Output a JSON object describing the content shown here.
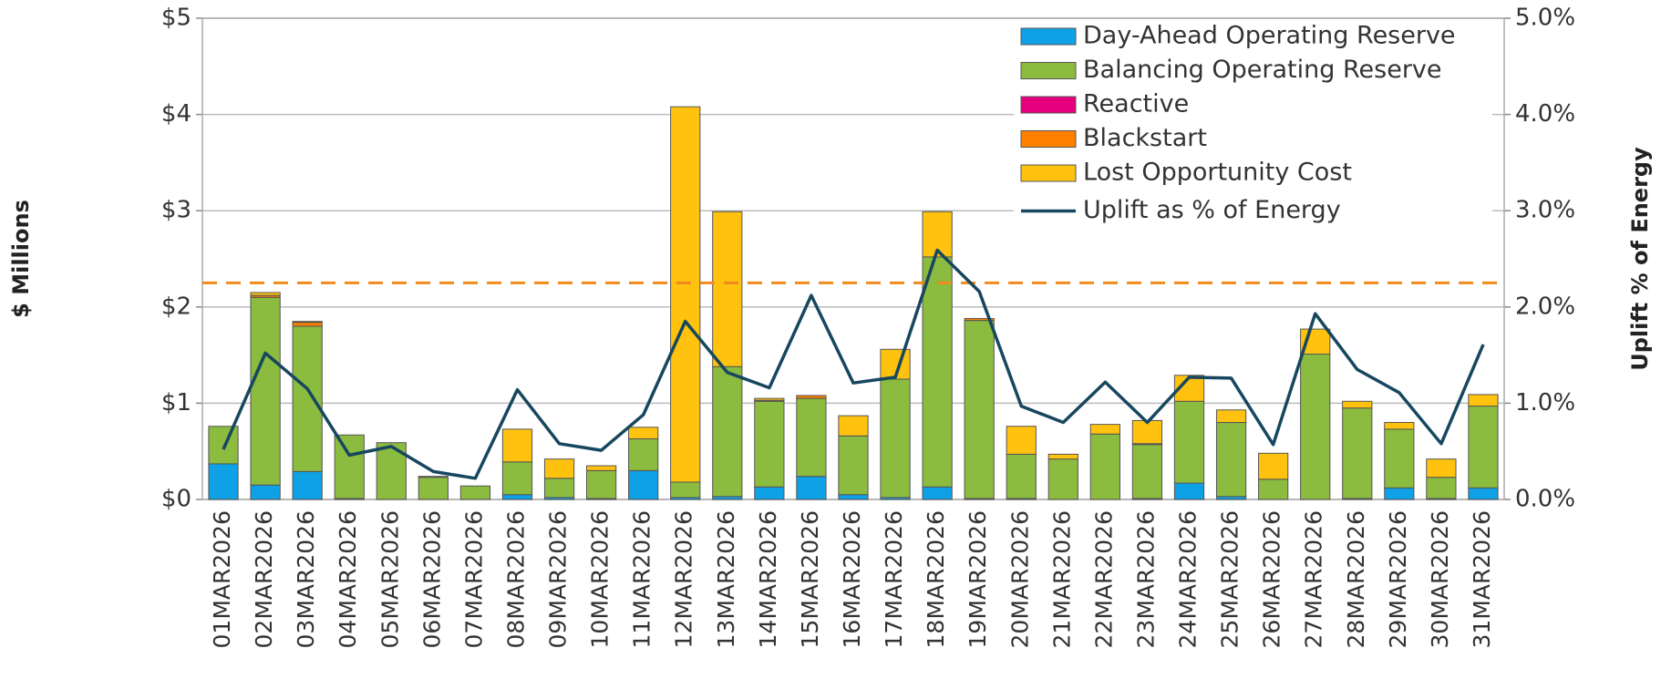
{
  "chart_data": {
    "type": "bar",
    "stacked": true,
    "ylabel": "$ Millions",
    "y2label": "Uplift % of Energy",
    "categories": [
      "01MAR2026",
      "02MAR2026",
      "03MAR2026",
      "04MAR2026",
      "05MAR2026",
      "06MAR2026",
      "07MAR2026",
      "08MAR2026",
      "09MAR2026",
      "10MAR2026",
      "11MAR2026",
      "12MAR2026",
      "13MAR2026",
      "14MAR2026",
      "15MAR2026",
      "16MAR2026",
      "17MAR2026",
      "18MAR2026",
      "19MAR2026",
      "20MAR2026",
      "21MAR2026",
      "22MAR2026",
      "23MAR2026",
      "24MAR2026",
      "25MAR2026",
      "26MAR2026",
      "27MAR2026",
      "28MAR2026",
      "29MAR2026",
      "30MAR2026",
      "31MAR2026"
    ],
    "series": [
      {
        "name": "Day-Ahead Operating Reserve",
        "color": "#0ea1e6",
        "type": "bar",
        "values": [
          0.37,
          0.15,
          0.29,
          0.01,
          0,
          0,
          0,
          0.05,
          0.02,
          0.01,
          0.3,
          0.02,
          0.03,
          0.13,
          0.24,
          0.05,
          0.02,
          0.13,
          0.01,
          0.01,
          0,
          0,
          0.01,
          0.17,
          0.03,
          0,
          0,
          0.01,
          0.12,
          0.01,
          0.12
        ]
      },
      {
        "name": "Balancing Operating Reserve",
        "color": "#8bbb3f",
        "type": "bar",
        "values": [
          0.39,
          1.95,
          1.51,
          0.66,
          0.59,
          0.23,
          0.14,
          0.34,
          0.2,
          0.29,
          0.33,
          0.16,
          1.35,
          0.89,
          0.81,
          0.61,
          1.23,
          2.39,
          1.85,
          0.46,
          0.42,
          0.68,
          0.56,
          0.85,
          0.77,
          0.21,
          1.51,
          0.94,
          0.61,
          0.22,
          0.85
        ]
      },
      {
        "name": "Reactive",
        "color": "#e6007e",
        "type": "bar",
        "values": [
          0,
          0,
          0,
          0,
          0,
          0,
          0,
          0,
          0,
          0,
          0,
          0,
          0,
          0,
          0,
          0,
          0,
          0,
          0,
          0,
          0,
          0,
          0,
          0,
          0,
          0,
          0,
          0,
          0,
          0,
          0
        ]
      },
      {
        "name": "Blackstart",
        "color": "#ff8000",
        "type": "bar",
        "values": [
          0,
          0.02,
          0.04,
          0,
          0,
          0.01,
          0,
          0,
          0,
          0,
          0,
          0,
          0,
          0.01,
          0.03,
          0,
          0,
          0,
          0.02,
          0,
          0,
          0,
          0.01,
          0,
          0,
          0,
          0,
          0,
          0,
          0,
          0
        ]
      },
      {
        "name": "Lost Opportunity Cost",
        "color": "#ffc20e",
        "type": "bar",
        "values": [
          0,
          0.03,
          0.01,
          0,
          0,
          0,
          0,
          0.34,
          0.2,
          0.05,
          0.12,
          3.9,
          1.61,
          0.02,
          0,
          0.21,
          0.31,
          0.47,
          0,
          0.29,
          0.05,
          0.1,
          0.24,
          0.27,
          0.13,
          0.27,
          0.26,
          0.07,
          0.07,
          0.19,
          0.12
        ]
      },
      {
        "name": "Uplift as % of Energy",
        "color": "#17475f",
        "type": "line",
        "axis": "y2",
        "values": [
          0.52,
          1.52,
          1.15,
          0.46,
          0.55,
          0.29,
          0.22,
          1.14,
          0.58,
          0.51,
          0.88,
          1.85,
          1.32,
          1.16,
          2.12,
          1.21,
          1.27,
          2.59,
          2.16,
          0.97,
          0.8,
          1.22,
          0.8,
          1.27,
          1.26,
          0.57,
          1.93,
          1.35,
          1.11,
          0.58,
          1.61
        ]
      }
    ],
    "hline": {
      "value": 2.25,
      "color": "#f08a1c"
    },
    "ylim": [
      0,
      5
    ],
    "yticks": [
      {
        "value": 0,
        "label": "$0"
      },
      {
        "value": 1,
        "label": "$1"
      },
      {
        "value": 2,
        "label": "$2"
      },
      {
        "value": 3,
        "label": "$3"
      },
      {
        "value": 4,
        "label": "$4"
      },
      {
        "value": 5,
        "label": "$5"
      }
    ],
    "y2lim": [
      0,
      5
    ],
    "y2ticks": [
      {
        "value": 0,
        "label": "0.0%"
      },
      {
        "value": 1,
        "label": "1.0%"
      },
      {
        "value": 2,
        "label": "2.0%"
      },
      {
        "value": 3,
        "label": "3.0%"
      },
      {
        "value": 4,
        "label": "4.0%"
      },
      {
        "value": 5,
        "label": "5.0%"
      }
    ],
    "grid": true,
    "legend": "top-right"
  }
}
